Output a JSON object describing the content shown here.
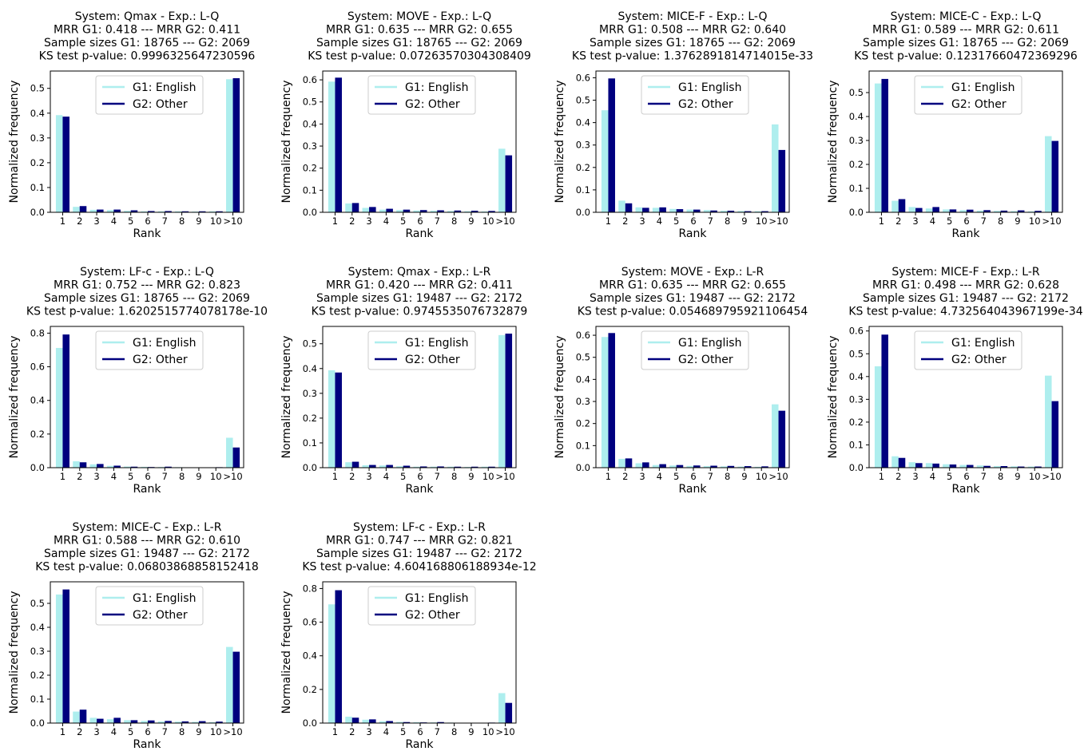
{
  "figure": {
    "common": {
      "type": "bar",
      "categories": [
        "1",
        "2",
        "3",
        "4",
        "5",
        "6",
        "7",
        "8",
        "9",
        "10",
        ">10"
      ],
      "xlabel": "Rank",
      "ylabel": "Normalized frequency",
      "series_colors": [
        "#aeeeee",
        "#00007f"
      ],
      "legend_location": "upper-center",
      "grid": false
    },
    "chart_data": [
      {
        "type": "bar",
        "title_lines": [
          "System: Qmax - Exp.: L-Q",
          "MRR G1: 0.418 --- MRR G2: 0.411",
          "Sample sizes G1: 18765 --- G2: 2069",
          "KS test p-value: 0.9996325647230596"
        ],
        "categories": [
          "1",
          "2",
          "3",
          "4",
          "5",
          "6",
          "7",
          "8",
          "9",
          "10",
          ">10"
        ],
        "xlabel": "Rank",
        "ylabel": "Normalized frequency",
        "ylim": [
          0,
          0.57
        ],
        "yticks": [
          "0.0",
          "0.1",
          "0.2",
          "0.3",
          "0.4",
          "0.5"
        ],
        "series": [
          {
            "name": "G1: English",
            "values": [
              0.392,
              0.022,
              0.01,
              0.009,
              0.006,
              0.004,
              0.004,
              0.004,
              0.003,
              0.004,
              0.537
            ]
          },
          {
            "name": "G2: Other",
            "values": [
              0.386,
              0.025,
              0.011,
              0.011,
              0.008,
              0.005,
              0.005,
              0.004,
              0.004,
              0.004,
              0.541
            ]
          }
        ]
      },
      {
        "type": "bar",
        "title_lines": [
          "System: MOVE - Exp.: L-Q",
          "MRR G1: 0.635 --- MRR G2: 0.655",
          "Sample sizes G1: 18765 --- G2: 2069",
          "KS test p-value: 0.07263570304308409"
        ],
        "categories": [
          "1",
          "2",
          "3",
          "4",
          "5",
          "6",
          "7",
          "8",
          "9",
          "10",
          ">10"
        ],
        "xlabel": "Rank",
        "ylabel": "Normalized frequency",
        "ylim": [
          0,
          0.64
        ],
        "yticks": [
          "0.0",
          "0.1",
          "0.2",
          "0.3",
          "0.4",
          "0.5",
          "0.6"
        ],
        "series": [
          {
            "name": "G1: English",
            "values": [
              0.592,
              0.04,
              0.02,
              0.012,
              0.01,
              0.008,
              0.007,
              0.006,
              0.005,
              0.004,
              0.288
            ]
          },
          {
            "name": "G2: Other",
            "values": [
              0.61,
              0.042,
              0.024,
              0.016,
              0.012,
              0.01,
              0.009,
              0.008,
              0.007,
              0.006,
              0.258
            ]
          }
        ]
      },
      {
        "type": "bar",
        "title_lines": [
          "System: MICE-F - Exp.: L-Q",
          "MRR G1: 0.508 --- MRR G2: 0.640",
          "Sample sizes G1: 18765 --- G2: 2069",
          "KS test p-value: 1.3762891814714015e-33"
        ],
        "categories": [
          "1",
          "2",
          "3",
          "4",
          "5",
          "6",
          "7",
          "8",
          "9",
          "10",
          ">10"
        ],
        "xlabel": "Rank",
        "ylabel": "Normalized frequency",
        "ylim": [
          0,
          0.63
        ],
        "yticks": [
          "0.0",
          "0.1",
          "0.2",
          "0.3",
          "0.4",
          "0.5",
          "0.6"
        ],
        "series": [
          {
            "name": "G1: English",
            "values": [
              0.455,
              0.052,
              0.022,
              0.02,
              0.015,
              0.012,
              0.01,
              0.007,
              0.006,
              0.005,
              0.392
            ]
          },
          {
            "name": "G2: Other",
            "values": [
              0.597,
              0.04,
              0.02,
              0.022,
              0.014,
              0.012,
              0.008,
              0.007,
              0.005,
              0.005,
              0.278
            ]
          }
        ]
      },
      {
        "type": "bar",
        "title_lines": [
          "System: MICE-C - Exp.: L-Q",
          "MRR G1: 0.589 --- MRR G2: 0.611",
          "Sample sizes G1: 18765 --- G2: 2069",
          "KS test p-value: 0.12317660472369296"
        ],
        "categories": [
          "1",
          "2",
          "3",
          "4",
          "5",
          "6",
          "7",
          "8",
          "9",
          "10",
          ">10"
        ],
        "xlabel": "Rank",
        "ylabel": "Normalized frequency",
        "ylim": [
          0,
          0.59
        ],
        "yticks": [
          "0.0",
          "0.1",
          "0.2",
          "0.3",
          "0.4",
          "0.5"
        ],
        "series": [
          {
            "name": "G1: English",
            "values": [
              0.538,
              0.048,
              0.022,
              0.016,
              0.012,
              0.009,
              0.007,
              0.006,
              0.005,
              0.004,
              0.318
            ]
          },
          {
            "name": "G2: Other",
            "values": [
              0.557,
              0.055,
              0.018,
              0.022,
              0.012,
              0.011,
              0.009,
              0.007,
              0.008,
              0.006,
              0.298
            ]
          }
        ]
      },
      {
        "type": "bar",
        "title_lines": [
          "System: LF-c - Exp.: L-Q",
          "MRR G1: 0.752 --- MRR G2: 0.823",
          "Sample sizes G1: 18765 --- G2: 2069",
          "KS test p-value: 1.6202515774078178e-10"
        ],
        "categories": [
          "1",
          "2",
          "3",
          "4",
          "5",
          "6",
          "7",
          "8",
          "9",
          "10",
          ">10"
        ],
        "xlabel": "Rank",
        "ylabel": "Normalized frequency",
        "ylim": [
          0,
          0.84
        ],
        "yticks": [
          "0.0",
          "0.2",
          "0.4",
          "0.6",
          "0.8"
        ],
        "series": [
          {
            "name": "G1: English",
            "values": [
              0.712,
              0.038,
              0.02,
              0.011,
              0.007,
              0.005,
              0.004,
              0.003,
              0.002,
              0.002,
              0.178
            ]
          },
          {
            "name": "G2: Other",
            "values": [
              0.792,
              0.032,
              0.022,
              0.012,
              0.006,
              0.004,
              0.006,
              0.002,
              0.002,
              0.003,
              0.12
            ]
          }
        ]
      },
      {
        "type": "bar",
        "title_lines": [
          "System: Qmax - Exp.: L-R",
          "MRR G1: 0.420 --- MRR G2: 0.411",
          "Sample sizes G1: 19487 --- G2: 2172",
          "KS test p-value: 0.9745535076732879"
        ],
        "categories": [
          "1",
          "2",
          "3",
          "4",
          "5",
          "6",
          "7",
          "8",
          "9",
          "10",
          ">10"
        ],
        "xlabel": "Rank",
        "ylabel": "Normalized frequency",
        "ylim": [
          0,
          0.57
        ],
        "yticks": [
          "0.0",
          "0.1",
          "0.2",
          "0.3",
          "0.4",
          "0.5"
        ],
        "series": [
          {
            "name": "G1: English",
            "values": [
              0.393,
              0.022,
              0.01,
              0.009,
              0.006,
              0.004,
              0.004,
              0.004,
              0.003,
              0.004,
              0.535
            ]
          },
          {
            "name": "G2: Other",
            "values": [
              0.384,
              0.024,
              0.011,
              0.011,
              0.008,
              0.005,
              0.005,
              0.004,
              0.004,
              0.004,
              0.541
            ]
          }
        ]
      },
      {
        "type": "bar",
        "title_lines": [
          "System: MOVE - Exp.: L-R",
          "MRR G1: 0.635 --- MRR G2: 0.655",
          "Sample sizes G1: 19487 --- G2: 2172",
          "KS test p-value: 0.054689795921106454"
        ],
        "categories": [
          "1",
          "2",
          "3",
          "4",
          "5",
          "6",
          "7",
          "8",
          "9",
          "10",
          ">10"
        ],
        "xlabel": "Rank",
        "ylabel": "Normalized frequency",
        "ylim": [
          0,
          0.64
        ],
        "yticks": [
          "0.0",
          "0.1",
          "0.2",
          "0.3",
          "0.4",
          "0.5",
          "0.6"
        ],
        "series": [
          {
            "name": "G1: English",
            "values": [
              0.592,
              0.04,
              0.02,
              0.012,
              0.01,
              0.008,
              0.007,
              0.006,
              0.005,
              0.004,
              0.287
            ]
          },
          {
            "name": "G2: Other",
            "values": [
              0.61,
              0.042,
              0.024,
              0.016,
              0.012,
              0.01,
              0.009,
              0.008,
              0.007,
              0.006,
              0.258
            ]
          }
        ]
      },
      {
        "type": "bar",
        "title_lines": [
          "System: MICE-F - Exp.: L-R",
          "MRR G1: 0.498 --- MRR G2: 0.628",
          "Sample sizes G1: 19487 --- G2: 2172",
          "KS test p-value: 4.732564043967199e-34"
        ],
        "categories": [
          "1",
          "2",
          "3",
          "4",
          "5",
          "6",
          "7",
          "8",
          "9",
          "10",
          ">10"
        ],
        "xlabel": "Rank",
        "ylabel": "Normalized frequency",
        "ylim": [
          0,
          0.62
        ],
        "yticks": [
          "0.0",
          "0.1",
          "0.2",
          "0.3",
          "0.4",
          "0.5",
          "0.6"
        ],
        "series": [
          {
            "name": "G1: English",
            "values": [
              0.445,
              0.05,
              0.024,
              0.02,
              0.015,
              0.012,
              0.01,
              0.007,
              0.006,
              0.005,
              0.404
            ]
          },
          {
            "name": "G2: Other",
            "values": [
              0.584,
              0.043,
              0.02,
              0.018,
              0.014,
              0.012,
              0.008,
              0.007,
              0.005,
              0.005,
              0.292
            ]
          }
        ]
      },
      {
        "type": "bar",
        "title_lines": [
          "System: MICE-C - Exp.: L-R",
          "MRR G1: 0.588 --- MRR G2: 0.610",
          "Sample sizes G1: 19487 --- G2: 2172",
          "KS test p-value: 0.06803868858152418"
        ],
        "categories": [
          "1",
          "2",
          "3",
          "4",
          "5",
          "6",
          "7",
          "8",
          "9",
          "10",
          ">10"
        ],
        "xlabel": "Rank",
        "ylabel": "Normalized frequency",
        "ylim": [
          0,
          0.59
        ],
        "yticks": [
          "0.0",
          "0.1",
          "0.2",
          "0.3",
          "0.4",
          "0.5"
        ],
        "series": [
          {
            "name": "G1: English",
            "values": [
              0.537,
              0.048,
              0.022,
              0.016,
              0.012,
              0.009,
              0.007,
              0.006,
              0.005,
              0.004,
              0.318
            ]
          },
          {
            "name": "G2: Other",
            "values": [
              0.558,
              0.056,
              0.018,
              0.022,
              0.012,
              0.011,
              0.009,
              0.007,
              0.008,
              0.006,
              0.298
            ]
          }
        ]
      },
      {
        "type": "bar",
        "title_lines": [
          "System: LF-c - Exp.: L-R",
          "MRR G1: 0.747 --- MRR G2: 0.821",
          "Sample sizes G1: 19487 --- G2: 2172",
          "KS test p-value: 4.604168806188934e-12"
        ],
        "categories": [
          "1",
          "2",
          "3",
          "4",
          "5",
          "6",
          "7",
          "8",
          "9",
          "10",
          ">10"
        ],
        "xlabel": "Rank",
        "ylabel": "Normalized frequency",
        "ylim": [
          0,
          0.84
        ],
        "yticks": [
          "0.0",
          "0.2",
          "0.4",
          "0.6",
          "0.8"
        ],
        "series": [
          {
            "name": "G1: English",
            "values": [
              0.706,
              0.038,
              0.02,
              0.011,
              0.007,
              0.005,
              0.004,
              0.003,
              0.002,
              0.002,
              0.178
            ]
          },
          {
            "name": "G2: Other",
            "values": [
              0.79,
              0.032,
              0.022,
              0.012,
              0.006,
              0.004,
              0.006,
              0.002,
              0.002,
              0.003,
              0.12
            ]
          }
        ]
      }
    ]
  }
}
